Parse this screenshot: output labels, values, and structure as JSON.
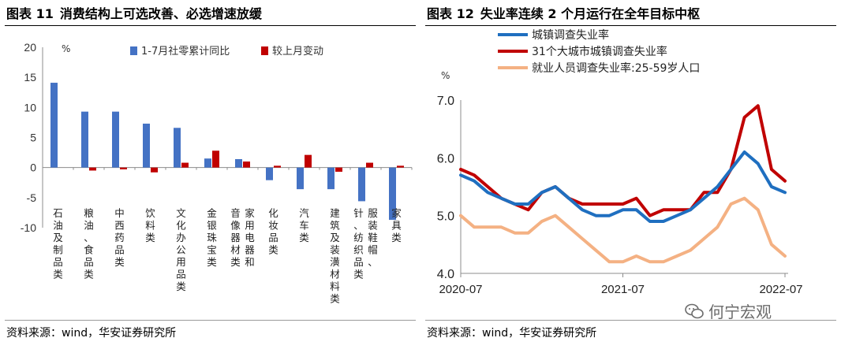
{
  "left": {
    "title_num": "图表 11",
    "title_text": "消费结构上可选改善、必选增速放缓",
    "source": "资料来源：wind，华安证券研究所"
  },
  "right": {
    "title_num": "图表 12",
    "title_text": "失业率连续 2 个月运行在全年目标中枢",
    "source": "资料来源：wind，华安证券研究所",
    "watermark": "何宁宏观"
  },
  "chart_data": [
    {
      "type": "bar",
      "title": "消费结构上可选改善、必选增速放缓",
      "ylabel": "%",
      "ylim": [
        -10,
        20
      ],
      "yticks": [
        -10,
        -5,
        0,
        5,
        10,
        15,
        20
      ],
      "categories": [
        "石油及制品类",
        "粮油、食品类",
        "中西药品类",
        "饮料类",
        "文化办公用品类",
        "金银珠宝类",
        "家用电器和音像器材类",
        "化妆品类",
        "汽车类",
        "建筑及装潢材料类",
        "服装鞋帽、针、纺织品类",
        "家具类"
      ],
      "category_label_columns": [
        [
          "石油及制品类"
        ],
        [
          "粮油、食品类"
        ],
        [
          "中西药品类"
        ],
        [
          "饮料类"
        ],
        [
          "文化办公用品类"
        ],
        [
          "金银珠宝类"
        ],
        [
          "家用电器和",
          "音像器材类"
        ],
        [
          "化妆品类"
        ],
        [
          "汽车类"
        ],
        [
          "建筑及装潢材料类"
        ],
        [
          "服装鞋帽、",
          "针、纺织品类"
        ],
        [
          "家具类"
        ]
      ],
      "series": [
        {
          "name": "1-7月社零累计同比",
          "color": "#4472C4",
          "values": [
            14.1,
            9.3,
            9.3,
            7.3,
            6.6,
            1.5,
            1.4,
            -2.1,
            -3.6,
            -3.6,
            -5.6,
            -8.7
          ]
        },
        {
          "name": "较上月变动",
          "color": "#C00000",
          "values": [
            0.0,
            -0.5,
            -0.3,
            -0.8,
            0.8,
            2.8,
            1.0,
            0.3,
            2.1,
            -0.7,
            0.8,
            0.3
          ]
        }
      ]
    },
    {
      "type": "line",
      "title": "失业率连续 2 个月运行在全年目标中枢",
      "ylabel": "%",
      "ylim": [
        4.0,
        7.0
      ],
      "yticks": [
        "4.0",
        "5.0",
        "6.0",
        "7.0"
      ],
      "x_start": "2020-07",
      "x_end": "2022-07",
      "xtick_labels": [
        "2020-07",
        "2021-07",
        "2022-07"
      ],
      "series": [
        {
          "name": "城镇调查失业率",
          "color": "#1F6FC0",
          "values": [
            5.7,
            5.6,
            5.4,
            5.3,
            5.2,
            5.2,
            5.4,
            5.5,
            5.3,
            5.1,
            5.0,
            5.0,
            5.1,
            5.1,
            4.9,
            4.9,
            5.0,
            5.1,
            5.3,
            5.5,
            5.8,
            6.1,
            5.9,
            5.5,
            5.4
          ]
        },
        {
          "name": "31个大城市城镇调查失业率",
          "color": "#C00000",
          "values": [
            5.8,
            5.7,
            5.5,
            5.3,
            5.2,
            5.1,
            5.4,
            5.5,
            5.3,
            5.2,
            5.2,
            5.2,
            5.2,
            5.3,
            5.0,
            5.1,
            5.1,
            5.1,
            5.4,
            5.4,
            5.8,
            6.7,
            6.9,
            5.8,
            5.6
          ]
        },
        {
          "name": "就业人员调查失业率:25-59岁人口",
          "color": "#F4B183",
          "values": [
            5.0,
            4.8,
            4.8,
            4.8,
            4.7,
            4.7,
            4.9,
            5.0,
            4.8,
            4.6,
            4.4,
            4.2,
            4.2,
            4.3,
            4.2,
            4.2,
            4.3,
            4.4,
            4.6,
            4.8,
            5.2,
            5.3,
            5.1,
            4.5,
            4.3
          ]
        }
      ]
    }
  ]
}
